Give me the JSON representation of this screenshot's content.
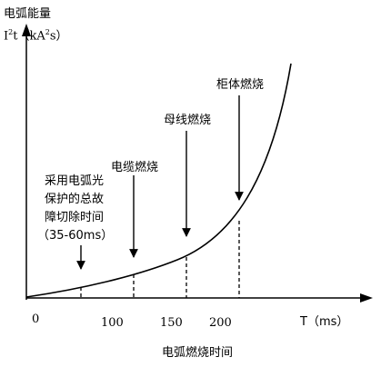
{
  "y_axis": {
    "title": "电弧能量",
    "unit_prefix": "I",
    "unit_sup1": "2",
    "unit_mid": "t（kA",
    "unit_sup2": "2",
    "unit_suffix": "s）"
  },
  "x_axis": {
    "origin": "0",
    "ticks": [
      "100",
      "150",
      "200"
    ],
    "unit": "T（ms）",
    "title": "电弧燃烧时间"
  },
  "annotations": [
    {
      "lines": [
        "采用电弧光",
        "保护的总故",
        "障切除时间",
        "（35-60ms）"
      ]
    },
    {
      "lines": [
        "电缆燃烧"
      ]
    },
    {
      "lines": [
        "母线燃烧"
      ]
    },
    {
      "lines": [
        "柜体燃烧"
      ]
    }
  ],
  "chart_data": {
    "type": "line",
    "x": [
      0,
      60,
      100,
      150,
      200,
      260
    ],
    "curve": "exponential",
    "markers_x": [
      60,
      100,
      150,
      200
    ],
    "xlabel": "电弧燃烧时间",
    "ylabel": "电弧能量"
  }
}
